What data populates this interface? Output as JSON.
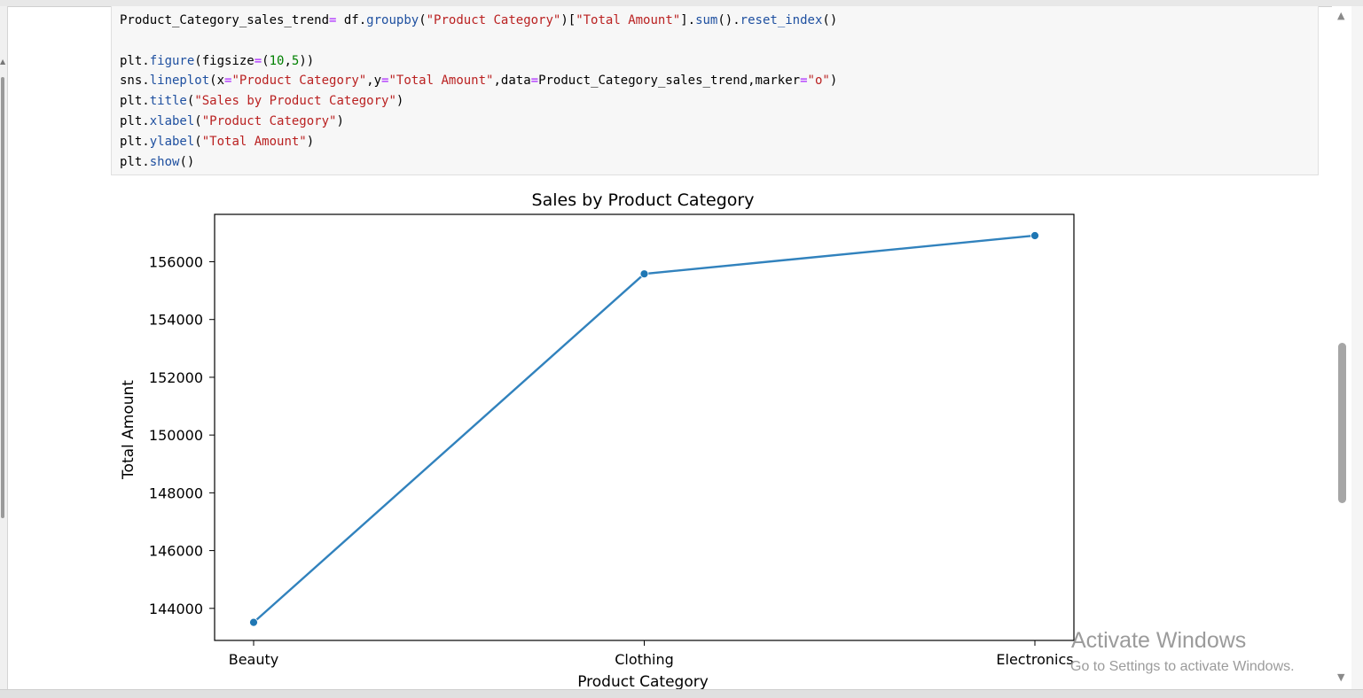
{
  "code_lines": [
    [
      {
        "t": "Product_Category_sales_trend",
        "c": ""
      },
      {
        "t": "=",
        "c": "op"
      },
      {
        "t": " df.",
        "c": ""
      },
      {
        "t": "groupby",
        "c": "fn"
      },
      {
        "t": "(",
        "c": ""
      },
      {
        "t": "\"Product Category\"",
        "c": "str"
      },
      {
        "t": ")[",
        "c": ""
      },
      {
        "t": "\"Total Amount\"",
        "c": "str"
      },
      {
        "t": "].",
        "c": ""
      },
      {
        "t": "sum",
        "c": "fn"
      },
      {
        "t": "().",
        "c": ""
      },
      {
        "t": "reset_index",
        "c": "fn"
      },
      {
        "t": "()",
        "c": ""
      }
    ],
    [],
    [
      {
        "t": "plt.",
        "c": ""
      },
      {
        "t": "figure",
        "c": "fn"
      },
      {
        "t": "(figsize",
        "c": ""
      },
      {
        "t": "=",
        "c": "op"
      },
      {
        "t": "(",
        "c": ""
      },
      {
        "t": "10",
        "c": "num"
      },
      {
        "t": ",",
        "c": ""
      },
      {
        "t": "5",
        "c": "num"
      },
      {
        "t": "))",
        "c": ""
      }
    ],
    [
      {
        "t": "sns.",
        "c": ""
      },
      {
        "t": "lineplot",
        "c": "fn"
      },
      {
        "t": "(x",
        "c": ""
      },
      {
        "t": "=",
        "c": "op"
      },
      {
        "t": "\"Product Category\"",
        "c": "str"
      },
      {
        "t": ",y",
        "c": ""
      },
      {
        "t": "=",
        "c": "op"
      },
      {
        "t": "\"Total Amount\"",
        "c": "str"
      },
      {
        "t": ",data",
        "c": ""
      },
      {
        "t": "=",
        "c": "op"
      },
      {
        "t": "Product_Category_sales_trend,marker",
        "c": ""
      },
      {
        "t": "=",
        "c": "op"
      },
      {
        "t": "\"o\"",
        "c": "str"
      },
      {
        "t": ")",
        "c": ""
      }
    ],
    [
      {
        "t": "plt.",
        "c": ""
      },
      {
        "t": "title",
        "c": "fn"
      },
      {
        "t": "(",
        "c": ""
      },
      {
        "t": "\"Sales by Product Category\"",
        "c": "str"
      },
      {
        "t": ")",
        "c": ""
      }
    ],
    [
      {
        "t": "plt.",
        "c": ""
      },
      {
        "t": "xlabel",
        "c": "fn"
      },
      {
        "t": "(",
        "c": ""
      },
      {
        "t": "\"Product Category\"",
        "c": "str"
      },
      {
        "t": ")",
        "c": ""
      }
    ],
    [
      {
        "t": "plt.",
        "c": ""
      },
      {
        "t": "ylabel",
        "c": "fn"
      },
      {
        "t": "(",
        "c": ""
      },
      {
        "t": "\"Total Amount\"",
        "c": "str"
      },
      {
        "t": ")",
        "c": ""
      }
    ],
    [
      {
        "t": "plt.",
        "c": ""
      },
      {
        "t": "show",
        "c": "fn"
      },
      {
        "t": "()",
        "c": ""
      }
    ]
  ],
  "colors": {
    "line": "#3182bd",
    "marker": "#1f77b4",
    "code_function": "#1f50a0",
    "code_string": "#ba2121",
    "code_number": "#008000",
    "code_operator": "#aa22ff"
  },
  "chart_data": {
    "type": "line",
    "title": "Sales by Product Category",
    "xlabel": "Product Category",
    "ylabel": "Total Amount",
    "categories": [
      "Beauty",
      "Clothing",
      "Electronics"
    ],
    "values": [
      143515,
      155580,
      156905
    ],
    "ylim": [
      142890,
      157640
    ],
    "yticks": [
      144000,
      146000,
      148000,
      150000,
      152000,
      154000,
      156000
    ],
    "marker": "o",
    "grid": false,
    "legend": "none"
  },
  "watermark": {
    "line1": "Activate Windows",
    "line2": "Go to Settings to activate Windows."
  },
  "icons": [
    "scroll-up-arrow-icon",
    "scroll-down-arrow-icon"
  ]
}
